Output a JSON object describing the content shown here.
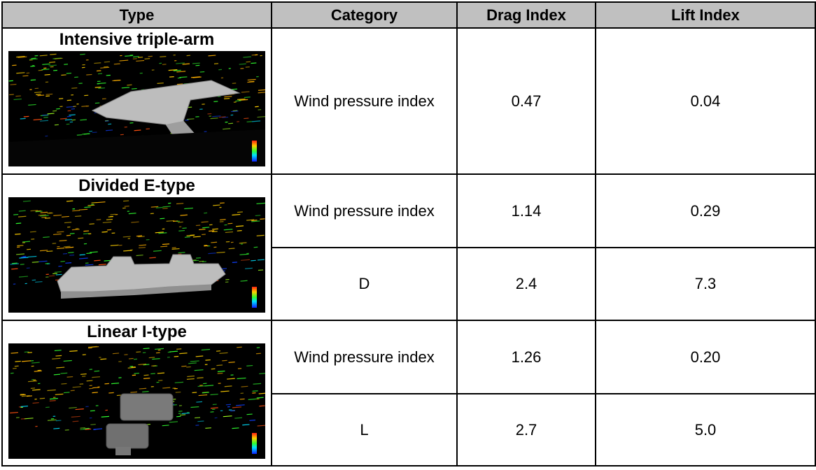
{
  "headers": {
    "type": "Type",
    "category": "Category",
    "drag": "Drag Index",
    "lift": "Lift Index"
  },
  "rows": [
    {
      "type": "Intensive triple-arm",
      "entries": [
        {
          "category": "Wind pressure index",
          "drag": "0.47",
          "lift": "0.04"
        }
      ]
    },
    {
      "type": "Divided E-type",
      "entries": [
        {
          "category": "Wind pressure index",
          "drag": "1.14",
          "lift": "0.29"
        },
        {
          "category": "D",
          "drag": "2.4",
          "lift": "7.3"
        }
      ]
    },
    {
      "type": "Linear I-type",
      "entries": [
        {
          "category": "Wind pressure index",
          "drag": "1.26",
          "lift": "0.20"
        },
        {
          "category": "L",
          "drag": "2.7",
          "lift": "5.0"
        }
      ]
    }
  ],
  "colors": {
    "header_bg": "#c0c0c0",
    "border": "#000000"
  }
}
